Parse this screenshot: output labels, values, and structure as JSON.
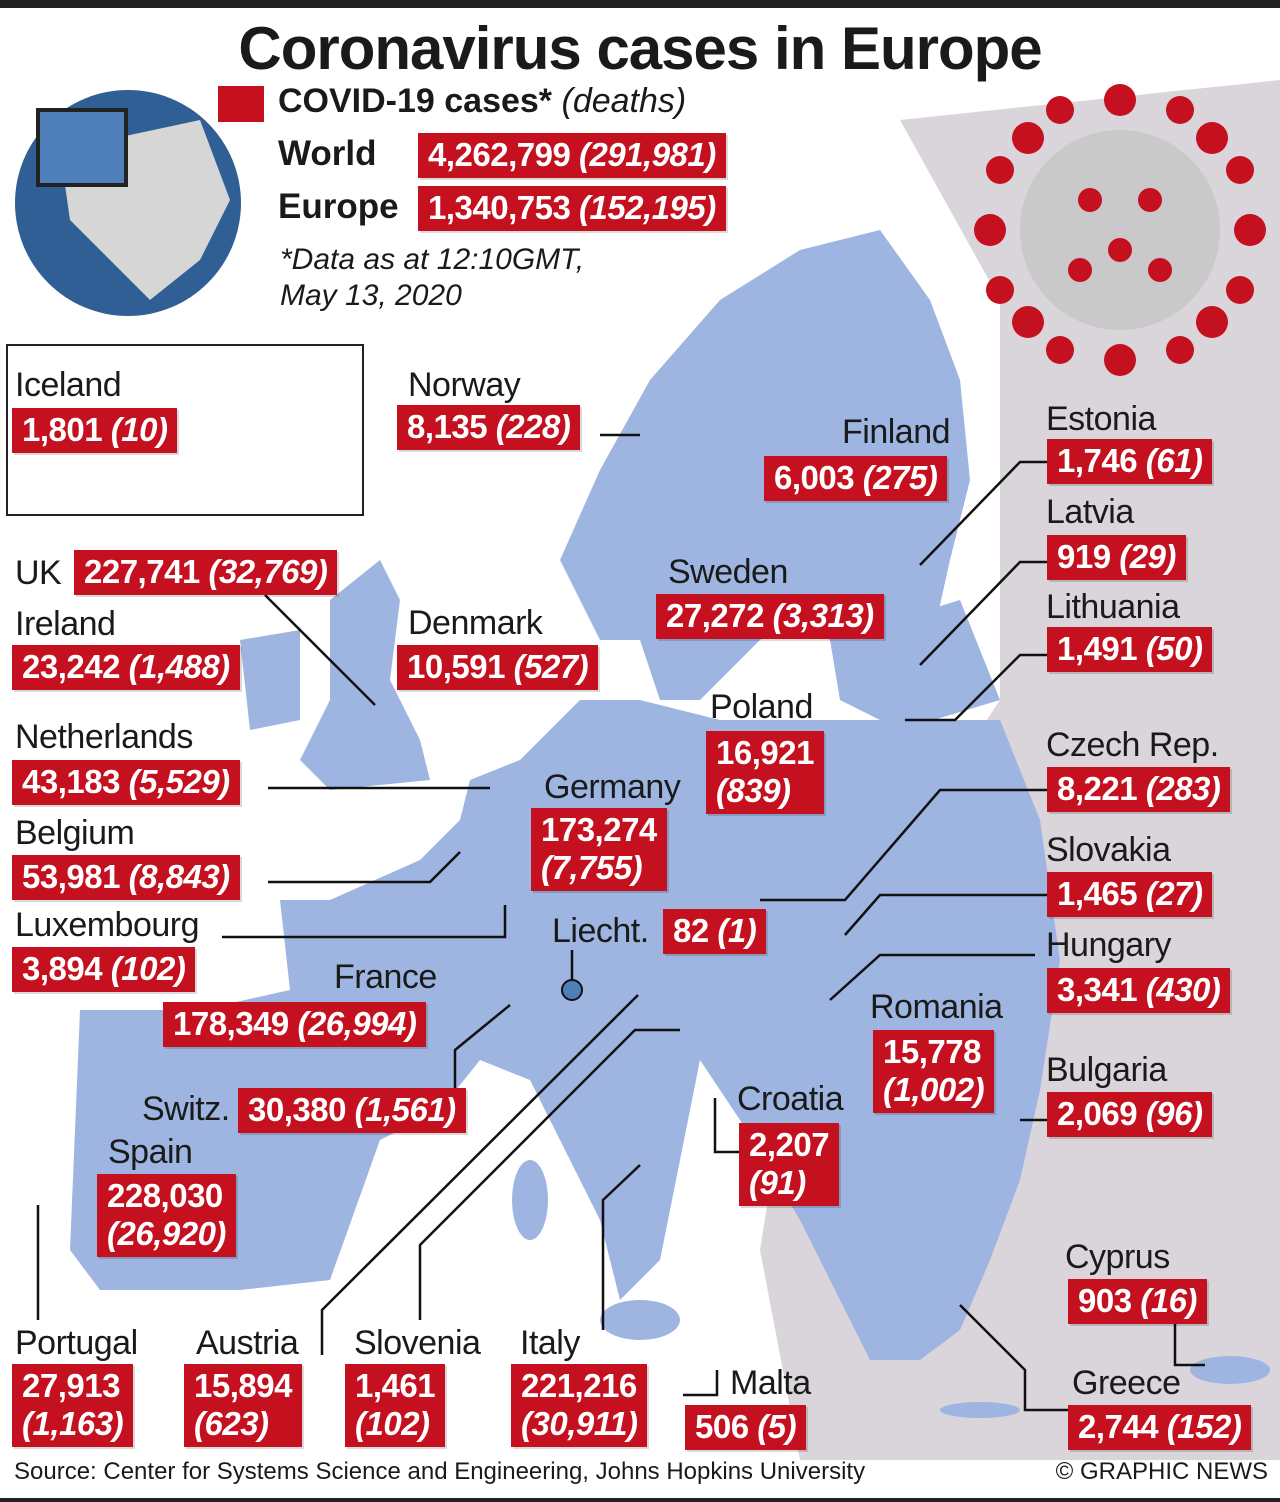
{
  "title": "Coronavirus cases in Europe",
  "legend": {
    "label": "COVID-19 cases*",
    "sub": "(deaths)",
    "color": "#c4101f"
  },
  "totals": [
    {
      "label": "World",
      "cases": "4,262,799",
      "deaths": "(291,981)"
    },
    {
      "label": "Europe",
      "cases": "1,340,753",
      "deaths": "(152,195)"
    }
  ],
  "note": [
    "*Data as at 12:10GMT,",
    "May 13, 2020"
  ],
  "colors": {
    "map": "#9db5e0",
    "outside": "#d9d5da",
    "box": "#c4101f",
    "globe": "#2f5f94"
  },
  "countries": [
    {
      "name": "Iceland",
      "cases": "1,801",
      "deaths": "(10)"
    },
    {
      "name": "Norway",
      "cases": "8,135",
      "deaths": "(228)"
    },
    {
      "name": "Finland",
      "cases": "6,003",
      "deaths": "(275)"
    },
    {
      "name": "Estonia",
      "cases": "1,746",
      "deaths": "(61)"
    },
    {
      "name": "Latvia",
      "cases": "919",
      "deaths": "(29)"
    },
    {
      "name": "Lithuania",
      "cases": "1,491",
      "deaths": "(50)"
    },
    {
      "name": "UK",
      "cases": "227,741",
      "deaths": "(32,769)"
    },
    {
      "name": "Ireland",
      "cases": "23,242",
      "deaths": "(1,488)"
    },
    {
      "name": "Sweden",
      "cases": "27,272",
      "deaths": "(3,313)"
    },
    {
      "name": "Denmark",
      "cases": "10,591",
      "deaths": "(527)"
    },
    {
      "name": "Poland",
      "cases": "16,921",
      "deaths": "(839)"
    },
    {
      "name": "Netherlands",
      "cases": "43,183",
      "deaths": "(5,529)"
    },
    {
      "name": "Germany",
      "cases": "173,274",
      "deaths": "(7,755)"
    },
    {
      "name": "Czech Rep.",
      "cases": "8,221",
      "deaths": "(283)"
    },
    {
      "name": "Belgium",
      "cases": "53,981",
      "deaths": "(8,843)"
    },
    {
      "name": "Slovakia",
      "cases": "1,465",
      "deaths": "(27)"
    },
    {
      "name": "Luxembourg",
      "cases": "3,894",
      "deaths": "(102)"
    },
    {
      "name": "Liecht.",
      "cases": "82",
      "deaths": "(1)"
    },
    {
      "name": "Hungary",
      "cases": "3,341",
      "deaths": "(430)"
    },
    {
      "name": "France",
      "cases": "178,349",
      "deaths": "(26,994)"
    },
    {
      "name": "Romania",
      "cases": "15,778",
      "deaths": "(1,002)"
    },
    {
      "name": "Bulgaria",
      "cases": "2,069",
      "deaths": "(96)"
    },
    {
      "name": "Switz.",
      "cases": "30,380",
      "deaths": "(1,561)"
    },
    {
      "name": "Croatia",
      "cases": "2,207",
      "deaths": "(91)"
    },
    {
      "name": "Spain",
      "cases": "228,030",
      "deaths": "(26,920)"
    },
    {
      "name": "Cyprus",
      "cases": "903",
      "deaths": "(16)"
    },
    {
      "name": "Portugal",
      "cases": "27,913",
      "deaths": "(1,163)"
    },
    {
      "name": "Austria",
      "cases": "15,894",
      "deaths": "(623)"
    },
    {
      "name": "Slovenia",
      "cases": "1,461",
      "deaths": "(102)"
    },
    {
      "name": "Italy",
      "cases": "221,216",
      "deaths": "(30,911)"
    },
    {
      "name": "Malta",
      "cases": "506",
      "deaths": "(5)"
    },
    {
      "name": "Greece",
      "cases": "2,744",
      "deaths": "(152)"
    }
  ],
  "footer": {
    "source": "Source: Center for Systems Science and Engineering, Johns Hopkins University",
    "credit": "© GRAPHIC NEWS"
  }
}
